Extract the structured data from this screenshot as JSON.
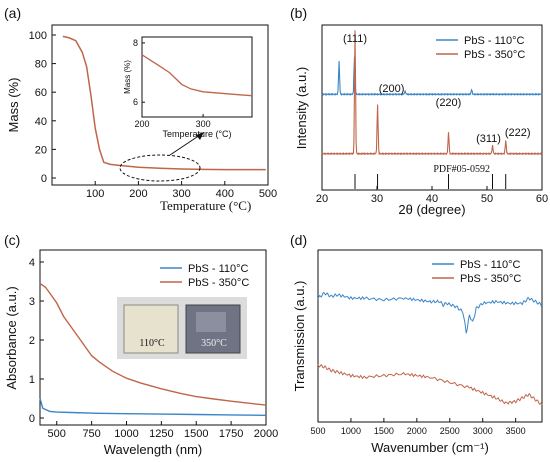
{
  "chart_data": [
    {
      "panel": "(a)",
      "type": "line",
      "xlabel": "Temperature (°C)",
      "ylabel": "Mass (%)",
      "xlim": [
        0,
        500
      ],
      "ylim": [
        0,
        100
      ],
      "xticks": [
        "100",
        "200",
        "300",
        "400",
        "500"
      ],
      "yticks": [
        "0",
        "20",
        "40",
        "60",
        "80",
        "100"
      ],
      "series": [
        {
          "color": "#c0654a",
          "points": [
            [
              25,
              99
            ],
            [
              40,
              98
            ],
            [
              55,
              96
            ],
            [
              70,
              88
            ],
            [
              80,
              78
            ],
            [
              90,
              58
            ],
            [
              100,
              35
            ],
            [
              110,
              20
            ],
            [
              120,
              11
            ],
            [
              135,
              9.5
            ],
            [
              150,
              9
            ],
            [
              200,
              7.5
            ],
            [
              250,
              6.8
            ],
            [
              300,
              6.3
            ],
            [
              350,
              6.0
            ],
            [
              400,
              5.9
            ],
            [
              450,
              5.9
            ],
            [
              495,
              5.9
            ]
          ]
        }
      ],
      "inset": {
        "ylabel": "Mass (%)",
        "xlabel": "Temperature (°C)",
        "xlim": [
          200,
          380
        ],
        "ylim": [
          5.5,
          8.2
        ],
        "xticks": [
          "200",
          "300"
        ],
        "yticks": [
          "6",
          "8"
        ],
        "points": [
          [
            200,
            7.6
          ],
          [
            215,
            7.4
          ],
          [
            230,
            7.2
          ],
          [
            245,
            7.0
          ],
          [
            255,
            6.8
          ],
          [
            265,
            6.6
          ],
          [
            280,
            6.45
          ],
          [
            300,
            6.35
          ],
          [
            330,
            6.3
          ],
          [
            360,
            6.25
          ],
          [
            380,
            6.22
          ]
        ]
      },
      "annotation": "dashed ellipse with arrow pointing to inset"
    },
    {
      "panel": "(b)",
      "type": "line",
      "xlabel": "2θ (degree)",
      "ylabel": "Intensity (a.u.)",
      "xlim": [
        20,
        60
      ],
      "xticks": [
        "20",
        "30",
        "40",
        "50",
        "60"
      ],
      "legend": [
        "PbS - 110°C",
        "PbS - 350°C"
      ],
      "legend_position": "top-right",
      "peak_labels": [
        {
          "text": "(111)",
          "x": 26
        },
        {
          "text": "(200)",
          "x": 30.1
        },
        {
          "text": "(220)",
          "x": 43
        },
        {
          "text": "(311)",
          "x": 51
        },
        {
          "text": "(222)",
          "x": 53.4
        }
      ],
      "reference": {
        "label": "PDF#05-0592",
        "positions": [
          26,
          30.1,
          43,
          51,
          53.4
        ]
      },
      "series": [
        {
          "name": "PbS - 110°C",
          "color": "#3b86c6",
          "baseline": 0.58,
          "peaks": [
            [
              23.1,
              0.2
            ],
            [
              25.9,
              0.23
            ],
            [
              35.1,
              0.02
            ],
            [
              47.2,
              0.03
            ]
          ]
        },
        {
          "name": "PbS - 350°C",
          "color": "#c0654a",
          "baseline": 0.22,
          "peaks": [
            [
              26,
              0.75
            ],
            [
              30.1,
              0.3
            ],
            [
              43,
              0.13
            ],
            [
              51,
              0.05
            ],
            [
              53.4,
              0.08
            ]
          ]
        }
      ]
    },
    {
      "panel": "(c)",
      "type": "line",
      "xlabel": "Wavelength (nm)",
      "ylabel": "Absorbance (a.u.)",
      "xlim": [
        380,
        2000
      ],
      "ylim": [
        0,
        4
      ],
      "xticks": [
        "500",
        "750",
        "1000",
        "1250",
        "1500",
        "1750",
        "2000"
      ],
      "yticks": [
        "0",
        "1",
        "2",
        "3",
        "4"
      ],
      "legend": [
        "PbS - 110°C",
        "PbS - 350°C"
      ],
      "legend_position": "top-right",
      "inset_labels": [
        "110°C",
        "350°C"
      ],
      "series": [
        {
          "name": "PbS - 110°C",
          "color": "#3b86c6",
          "points": [
            [
              380,
              0.5
            ],
            [
              400,
              0.25
            ],
            [
              450,
              0.17
            ],
            [
              500,
              0.15
            ],
            [
              600,
              0.14
            ],
            [
              800,
              0.12
            ],
            [
              1000,
              0.11
            ],
            [
              1250,
              0.1
            ],
            [
              1500,
              0.09
            ],
            [
              1750,
              0.08
            ],
            [
              2000,
              0.07
            ]
          ]
        },
        {
          "name": "PbS - 350°C",
          "color": "#c0654a",
          "points": [
            [
              380,
              3.45
            ],
            [
              420,
              3.35
            ],
            [
              460,
              3.15
            ],
            [
              500,
              2.95
            ],
            [
              550,
              2.6
            ],
            [
              600,
              2.35
            ],
            [
              650,
              2.1
            ],
            [
              700,
              1.85
            ],
            [
              750,
              1.6
            ],
            [
              800,
              1.45
            ],
            [
              900,
              1.2
            ],
            [
              1000,
              1.02
            ],
            [
              1100,
              0.9
            ],
            [
              1250,
              0.75
            ],
            [
              1400,
              0.62
            ],
            [
              1500,
              0.55
            ],
            [
              1600,
              0.5
            ],
            [
              1750,
              0.43
            ],
            [
              1900,
              0.37
            ],
            [
              2000,
              0.33
            ]
          ]
        }
      ]
    },
    {
      "panel": "(d)",
      "type": "line",
      "xlabel": "Wavenumber (cm⁻¹)",
      "ylabel": "Transmission (a.u.)",
      "xlim": [
        500,
        3900
      ],
      "xticks": [
        "500",
        "1000",
        "1500",
        "2000",
        "2500",
        "3000",
        "3500"
      ],
      "legend": [
        "PbS - 110°C",
        "PbS - 350°C"
      ],
      "legend_position": "top-right",
      "series": [
        {
          "name": "PbS - 110°C",
          "color": "#3b86c6",
          "points": [
            [
              500,
              0.72
            ],
            [
              600,
              0.75
            ],
            [
              700,
              0.73
            ],
            [
              800,
              0.74
            ],
            [
              1000,
              0.72
            ],
            [
              1200,
              0.72
            ],
            [
              1500,
              0.71
            ],
            [
              1800,
              0.72
            ],
            [
              2000,
              0.71
            ],
            [
              2200,
              0.7
            ],
            [
              2350,
              0.7
            ],
            [
              2400,
              0.68
            ],
            [
              2450,
              0.69
            ],
            [
              2600,
              0.67
            ],
            [
              2700,
              0.64
            ],
            [
              2750,
              0.52
            ],
            [
              2800,
              0.62
            ],
            [
              2850,
              0.58
            ],
            [
              2900,
              0.66
            ],
            [
              3000,
              0.69
            ],
            [
              3200,
              0.7
            ],
            [
              3400,
              0.69
            ],
            [
              3600,
              0.69
            ],
            [
              3700,
              0.72
            ],
            [
              3800,
              0.7
            ],
            [
              3900,
              0.68
            ]
          ]
        },
        {
          "name": "PbS - 350°C",
          "color": "#c0654a",
          "points": [
            [
              500,
              0.33
            ],
            [
              600,
              0.32
            ],
            [
              700,
              0.3
            ],
            [
              800,
              0.29
            ],
            [
              1000,
              0.27
            ],
            [
              1200,
              0.26
            ],
            [
              1500,
              0.27
            ],
            [
              1800,
              0.28
            ],
            [
              2000,
              0.27
            ],
            [
              2200,
              0.26
            ],
            [
              2500,
              0.23
            ],
            [
              2800,
              0.2
            ],
            [
              3000,
              0.17
            ],
            [
              3200,
              0.14
            ],
            [
              3350,
              0.11
            ],
            [
              3500,
              0.12
            ],
            [
              3600,
              0.14
            ],
            [
              3700,
              0.16
            ],
            [
              3800,
              0.13
            ],
            [
              3900,
              0.1
            ]
          ]
        }
      ]
    }
  ]
}
